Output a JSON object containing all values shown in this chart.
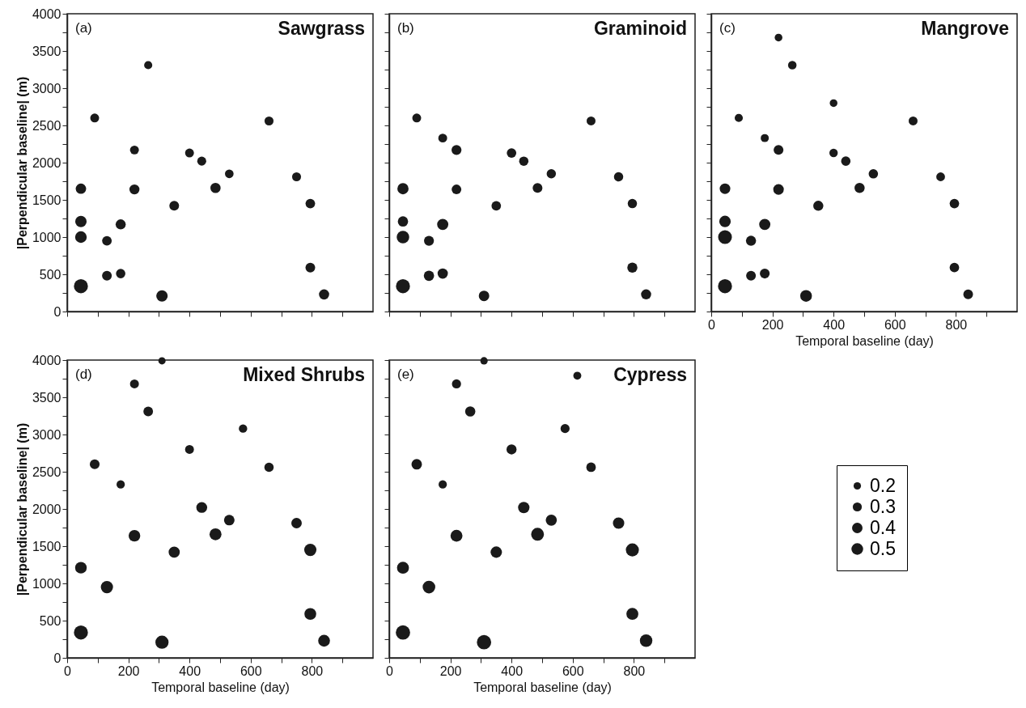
{
  "chart_data": [
    {
      "type": "bubble",
      "title": "Sawgrass",
      "annotations": [
        "(a)"
      ],
      "ylabel": "|Perpendicular baseline| (m)",
      "tick_labels": "y",
      "color": "#1a1a1a",
      "marker": "circle",
      "xlim": [
        0,
        1000
      ],
      "xticks": [
        0,
        {
          "value": 100,
          "label": null
        },
        200,
        {
          "value": 300,
          "label": null
        },
        400,
        {
          "value": 500,
          "label": null
        },
        600,
        {
          "value": 700,
          "label": null
        },
        800,
        {
          "value": 900,
          "label": null
        }
      ],
      "ylim": [
        0,
        4000
      ],
      "yticks": [
        0,
        {
          "value": 250,
          "label": null
        },
        500,
        {
          "value": 750,
          "label": null
        },
        1000,
        {
          "value": 1250,
          "label": null
        },
        1500,
        {
          "value": 1750,
          "label": null
        },
        2000,
        {
          "value": 2250,
          "label": null
        },
        2500,
        {
          "value": 2750,
          "label": null
        },
        3000,
        {
          "value": 3250,
          "label": null
        },
        3500,
        {
          "value": 3750,
          "label": null
        },
        4000
      ],
      "x": [
        45,
        45,
        45,
        45,
        90,
        130,
        130,
        175,
        175,
        220,
        220,
        265,
        310,
        350,
        400,
        440,
        485,
        530,
        660,
        750,
        795,
        795,
        840
      ],
      "values": [
        1650,
        1210,
        1000,
        340,
        2600,
        950,
        480,
        1170,
        510,
        2170,
        1640,
        3310,
        210,
        1420,
        2130,
        2020,
        1660,
        1850,
        2560,
        1810,
        1450,
        590,
        230
      ],
      "sizes": [
        0.55,
        0.66,
        0.69,
        1,
        0.4,
        0.47,
        0.48,
        0.52,
        0.45,
        0.4,
        0.52,
        0.34,
        0.66,
        0.48,
        0.4,
        0.41,
        0.53,
        0.38,
        0.41,
        0.41,
        0.47,
        0.48,
        0.53
      ]
    },
    {
      "type": "bubble",
      "title": "Graminoid",
      "annotations": [
        "(b)"
      ],
      "tick_labels": false,
      "color": "#1a1a1a",
      "marker": "circle",
      "xlim": [
        0,
        1000
      ],
      "xticks": [
        0,
        {
          "value": 100,
          "label": null
        },
        200,
        {
          "value": 300,
          "label": null
        },
        400,
        {
          "value": 500,
          "label": null
        },
        600,
        {
          "value": 700,
          "label": null
        },
        800,
        {
          "value": 900,
          "label": null
        }
      ],
      "ylim": [
        0,
        4000
      ],
      "yticks": [
        0,
        {
          "value": 250,
          "label": null
        },
        500,
        {
          "value": 750,
          "label": null
        },
        1000,
        {
          "value": 1250,
          "label": null
        },
        1500,
        {
          "value": 1750,
          "label": null
        },
        2000,
        {
          "value": 2250,
          "label": null
        },
        2500,
        {
          "value": 2750,
          "label": null
        },
        3000,
        {
          "value": 3250,
          "label": null
        },
        3500,
        {
          "value": 3750,
          "label": null
        },
        4000
      ],
      "x": [
        45,
        45,
        45,
        45,
        90,
        130,
        130,
        175,
        175,
        175,
        220,
        220,
        310,
        350,
        400,
        440,
        485,
        530,
        660,
        750,
        795,
        795,
        840
      ],
      "values": [
        1650,
        1210,
        1000,
        340,
        2600,
        950,
        480,
        2330,
        1170,
        510,
        2170,
        1640,
        210,
        1420,
        2130,
        2020,
        1660,
        1850,
        2560,
        1810,
        1450,
        590,
        230
      ],
      "sizes": [
        0.64,
        0.54,
        0.8,
        1,
        0.4,
        0.5,
        0.54,
        0.4,
        0.64,
        0.54,
        0.5,
        0.48,
        0.56,
        0.46,
        0.46,
        0.44,
        0.48,
        0.44,
        0.4,
        0.44,
        0.44,
        0.52,
        0.52
      ]
    },
    {
      "type": "bubble",
      "title": "Mangrove",
      "annotations": [
        "(c)"
      ],
      "xlabel": "Temporal baseline (day)",
      "tick_labels": "x",
      "color": "#1a1a1a",
      "marker": "circle",
      "xlim": [
        0,
        1000
      ],
      "xticks": [
        0,
        {
          "value": 100,
          "label": null
        },
        200,
        {
          "value": 300,
          "label": null
        },
        400,
        {
          "value": 500,
          "label": null
        },
        600,
        {
          "value": 700,
          "label": null
        },
        800,
        {
          "value": 900,
          "label": null
        }
      ],
      "ylim": [
        0,
        4000
      ],
      "yticks": [
        0,
        {
          "value": 250,
          "label": null
        },
        500,
        {
          "value": 750,
          "label": null
        },
        1000,
        {
          "value": 1250,
          "label": null
        },
        1500,
        {
          "value": 1750,
          "label": null
        },
        2000,
        {
          "value": 2250,
          "label": null
        },
        2500,
        {
          "value": 2750,
          "label": null
        },
        3000,
        {
          "value": 3250,
          "label": null
        },
        3500,
        {
          "value": 3750,
          "label": null
        },
        4000
      ],
      "x": [
        45,
        45,
        45,
        45,
        90,
        130,
        130,
        175,
        175,
        175,
        220,
        220,
        220,
        265,
        310,
        350,
        400,
        400,
        440,
        485,
        530,
        660,
        750,
        795,
        795,
        840
      ],
      "values": [
        1650,
        1210,
        1000,
        340,
        2600,
        950,
        480,
        2330,
        1170,
        510,
        3680,
        2170,
        1640,
        3310,
        210,
        1420,
        2800,
        2130,
        2020,
        1660,
        1850,
        2560,
        1810,
        1450,
        590,
        230
      ],
      "sizes": [
        0.57,
        0.67,
        0.97,
        1,
        0.34,
        0.52,
        0.48,
        0.33,
        0.64,
        0.49,
        0.3,
        0.48,
        0.57,
        0.37,
        0.7,
        0.52,
        0.3,
        0.36,
        0.45,
        0.52,
        0.45,
        0.4,
        0.39,
        0.46,
        0.46,
        0.48
      ]
    },
    {
      "type": "bubble",
      "title": "Mixed Shrubs",
      "annotations": [
        "(d)"
      ],
      "xlabel": "Temporal baseline (day)",
      "ylabel": "|Perpendicular baseline| (m)",
      "color": "#1a1a1a",
      "marker": "circle",
      "xlim": [
        0,
        1000
      ],
      "xticks": [
        0,
        {
          "value": 100,
          "label": null
        },
        200,
        {
          "value": 300,
          "label": null
        },
        400,
        {
          "value": 500,
          "label": null
        },
        600,
        {
          "value": 700,
          "label": null
        },
        800,
        {
          "value": 900,
          "label": null
        }
      ],
      "ylim": [
        0,
        4000
      ],
      "yticks": [
        0,
        {
          "value": 250,
          "label": null
        },
        500,
        {
          "value": 750,
          "label": null
        },
        1000,
        {
          "value": 1250,
          "label": null
        },
        1500,
        {
          "value": 1750,
          "label": null
        },
        2000,
        {
          "value": 2250,
          "label": null
        },
        2500,
        {
          "value": 2750,
          "label": null
        },
        3000,
        {
          "value": 3250,
          "label": null
        },
        3500,
        {
          "value": 3750,
          "label": null
        },
        4000
      ],
      "x": [
        45,
        45,
        90,
        130,
        175,
        220,
        220,
        265,
        310,
        310,
        350,
        400,
        440,
        485,
        530,
        575,
        660,
        750,
        795,
        795,
        840
      ],
      "values": [
        1210,
        340,
        2600,
        950,
        2330,
        3680,
        1640,
        3310,
        210,
        3990,
        1420,
        2800,
        2020,
        1660,
        1850,
        3080,
        2560,
        1810,
        1450,
        590,
        230
      ],
      "sizes": [
        0.69,
        1,
        0.49,
        0.76,
        0.35,
        0.4,
        0.69,
        0.47,
        0.89,
        0.27,
        0.64,
        0.4,
        0.6,
        0.73,
        0.57,
        0.36,
        0.44,
        0.56,
        0.76,
        0.71,
        0.71
      ]
    },
    {
      "type": "bubble",
      "title": "Cypress",
      "annotations": [
        "(e)"
      ],
      "xlabel": "Temporal baseline (day)",
      "tick_labels": "x",
      "color": "#1a1a1a",
      "marker": "circle",
      "size_legend": [
        0.2,
        0.3,
        0.4,
        0.5
      ],
      "xlim": [
        0,
        1000
      ],
      "xticks": [
        0,
        {
          "value": 100,
          "label": null
        },
        200,
        {
          "value": 300,
          "label": null
        },
        400,
        {
          "value": 500,
          "label": null
        },
        600,
        {
          "value": 700,
          "label": null
        },
        800,
        {
          "value": 900,
          "label": null
        }
      ],
      "ylim": [
        0,
        4000
      ],
      "yticks": [
        0,
        {
          "value": 250,
          "label": null
        },
        500,
        {
          "value": 750,
          "label": null
        },
        1000,
        {
          "value": 1250,
          "label": null
        },
        1500,
        {
          "value": 1750,
          "label": null
        },
        2000,
        {
          "value": 2250,
          "label": null
        },
        2500,
        {
          "value": 2750,
          "label": null
        },
        3000,
        {
          "value": 3250,
          "label": null
        },
        3500,
        {
          "value": 3750,
          "label": null
        },
        4000
      ],
      "x": [
        45,
        45,
        90,
        130,
        175,
        220,
        220,
        265,
        310,
        310,
        350,
        400,
        440,
        485,
        530,
        575,
        615,
        660,
        750,
        795,
        795,
        840
      ],
      "values": [
        1210,
        340,
        2600,
        950,
        2330,
        3680,
        1640,
        3310,
        210,
        3990,
        1420,
        2800,
        2020,
        1660,
        1850,
        3080,
        3790,
        2560,
        1810,
        1450,
        590,
        230
      ],
      "sizes": [
        0.52,
        0.75,
        0.4,
        0.58,
        0.25,
        0.3,
        0.52,
        0.38,
        0.75,
        0.2,
        0.47,
        0.37,
        0.47,
        0.6,
        0.45,
        0.3,
        0.23,
        0.33,
        0.47,
        0.62,
        0.52,
        0.57
      ]
    }
  ]
}
